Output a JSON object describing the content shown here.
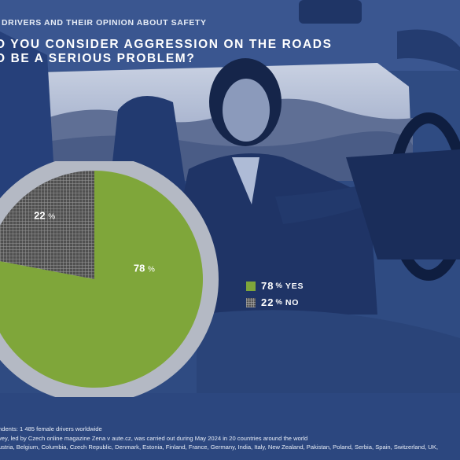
{
  "header": {
    "supertitle": "DRIVERS AND THEIR OPINION ABOUT SAFETY",
    "question_line1": "O YOU CONSIDER AGGRESSION ON THE ROADS",
    "question_line2": "O BE A SERIOUS PROBLEM?"
  },
  "chart_data": {
    "type": "pie",
    "title": "",
    "slices": [
      {
        "label": "YES",
        "value": 78,
        "display": "78",
        "unit": "%",
        "color": "#7fa63a",
        "pattern": "solid"
      },
      {
        "label": "NO",
        "value": 22,
        "display": "22",
        "unit": "%",
        "color": "#555555",
        "pattern": "grid"
      }
    ],
    "ring_color": "#b4b9c4",
    "legend_placement": "right"
  },
  "legend": {
    "yes": {
      "pct": "78",
      "unit": "%",
      "label": "YES"
    },
    "no": {
      "pct": "22",
      "unit": "%",
      "label": "NO"
    }
  },
  "notes": {
    "line1": "ndents: 1 485 female drivers worldwide",
    "line2": "vey, led by Czech online magazine Zena v aute.cz, was carried out during May 2024 in 20 countries around the world",
    "line3": "ustria, Belgium, Columbia, Czech Republic, Denmark, Estonia, Finland, France, Germany, India, Italy, New Zealand, Pakistan, Poland, Serbia, Spain, Switzerland, UK,"
  },
  "colors": {
    "background": "#2e4a80",
    "accent_yes": "#7fa63a",
    "accent_no": "#555555"
  }
}
